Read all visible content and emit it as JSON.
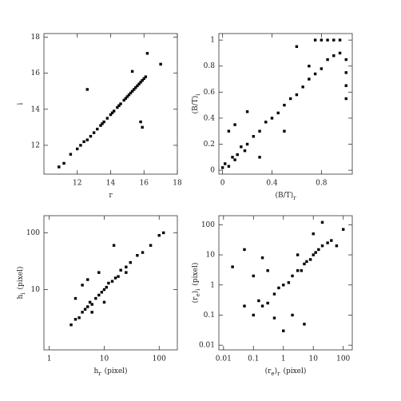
{
  "chart_data": [
    {
      "type": "scatter",
      "x_label": [
        "r"
      ],
      "y_label": [
        "i"
      ],
      "log_x": false,
      "log_y": false,
      "color": "#000000",
      "xlim": [
        10,
        18
      ],
      "ylim": [
        10.4,
        18.2
      ],
      "xticks": [
        12,
        14,
        16,
        18
      ],
      "yticks": [
        12,
        14,
        16,
        18
      ],
      "x": [
        10.9,
        11.2,
        11.6,
        12.0,
        12.2,
        12.4,
        12.6,
        12.8,
        13.0,
        13.2,
        13.4,
        13.5,
        13.6,
        13.8,
        14.0,
        14.1,
        14.2,
        14.4,
        14.5,
        14.6,
        14.8,
        14.9,
        15.0,
        15.1,
        15.2,
        15.3,
        15.4,
        15.5,
        15.6,
        15.7,
        15.8,
        15.9,
        16.0,
        16.1,
        12.6,
        15.8,
        15.9,
        16.2,
        17.0,
        15.3
      ],
      "values": [
        10.8,
        11.0,
        11.5,
        11.8,
        12.0,
        12.2,
        12.3,
        12.5,
        12.7,
        12.9,
        13.1,
        13.2,
        13.3,
        13.5,
        13.7,
        13.8,
        13.9,
        14.1,
        14.2,
        14.3,
        14.5,
        14.6,
        14.7,
        14.8,
        14.9,
        15.0,
        15.1,
        15.2,
        15.3,
        15.4,
        15.5,
        15.6,
        15.7,
        15.8,
        15.1,
        13.3,
        13.0,
        17.1,
        16.5,
        16.1
      ]
    },
    {
      "type": "scatter",
      "x_label": [
        "(B/T)",
        "r"
      ],
      "y_label": [
        "(B/T)",
        "i"
      ],
      "log_x": false,
      "log_y": false,
      "color": "#000000",
      "xlim": [
        -0.03,
        1.05
      ],
      "ylim": [
        -0.03,
        1.05
      ],
      "xticks": [
        0,
        0.4,
        0.8
      ],
      "yticks": [
        0,
        0.2,
        0.4,
        0.6,
        0.8,
        1
      ],
      "x": [
        0,
        0.02,
        0.05,
        0.08,
        0.1,
        0.12,
        0.15,
        0.18,
        0.2,
        0.25,
        0.3,
        0.35,
        0.4,
        0.45,
        0.5,
        0.55,
        0.6,
        0.65,
        0.7,
        0.75,
        0.8,
        0.85,
        0.9,
        0.95,
        0.05,
        0.1,
        0.3,
        0.2,
        0.5,
        0.6,
        0.75,
        0.8,
        0.85,
        0.9,
        0.95,
        1,
        1,
        1,
        1,
        0.7
      ],
      "values": [
        0.02,
        0.05,
        0.03,
        0.1,
        0.08,
        0.12,
        0.18,
        0.15,
        0.2,
        0.26,
        0.3,
        0.37,
        0.4,
        0.44,
        0.5,
        0.55,
        0.58,
        0.64,
        0.7,
        0.74,
        0.78,
        0.85,
        0.88,
        0.9,
        0.3,
        0.35,
        0.1,
        0.45,
        0.3,
        0.95,
        1,
        1,
        1,
        1,
        1,
        0.85,
        0.75,
        0.65,
        0.55,
        0.8
      ]
    },
    {
      "type": "scatter",
      "x_label": [
        "h",
        "r",
        "(pixel)"
      ],
      "y_label": [
        "h",
        "i",
        "(pixel)"
      ],
      "log_x": true,
      "log_y": true,
      "color": "#000000",
      "xlim": [
        0.8,
        214
      ],
      "ylim": [
        0.87,
        200
      ],
      "xticks": [
        1,
        10,
        100
      ],
      "yticks": [
        10,
        100
      ],
      "x": [
        2.5,
        3,
        3.5,
        4,
        4.5,
        5,
        5.5,
        6,
        7,
        8,
        9,
        10,
        11,
        12,
        14,
        16,
        18,
        20,
        25,
        30,
        40,
        50,
        70,
        100,
        3,
        4,
        6,
        8,
        10,
        5,
        15,
        25,
        120
      ],
      "values": [
        2.4,
        3,
        3.2,
        4,
        4.5,
        5,
        6,
        5.5,
        7,
        8,
        9,
        10,
        11,
        13,
        14,
        16,
        17,
        22,
        25,
        30,
        40,
        45,
        60,
        90,
        7,
        12,
        4,
        20,
        6,
        15,
        60,
        20,
        100
      ]
    },
    {
      "type": "scatter",
      "x_label": [
        "(r",
        "e",
        ")",
        "r",
        "(pixel)"
      ],
      "y_label": [
        "(r",
        "e",
        ")",
        "i",
        "(pixel)"
      ],
      "log_x": true,
      "log_y": true,
      "color": "#000000",
      "xlim": [
        0.007,
        200
      ],
      "ylim": [
        0.007,
        200
      ],
      "xticks": [
        0.01,
        0.1,
        1,
        10,
        100
      ],
      "yticks": [
        0.01,
        0.1,
        1,
        10,
        100
      ],
      "x": [
        0.02,
        0.05,
        0.1,
        0.15,
        0.2,
        0.3,
        0.5,
        0.7,
        1,
        1.5,
        2,
        3,
        4,
        5,
        6,
        8,
        10,
        12,
        15,
        20,
        30,
        40,
        0.3,
        0.1,
        0.5,
        2,
        5,
        1,
        3,
        10,
        20,
        0.05,
        0.2,
        60,
        100
      ],
      "values": [
        4,
        0.2,
        0.1,
        0.3,
        0.2,
        0.25,
        0.5,
        0.8,
        1,
        1.2,
        2,
        3,
        3,
        5,
        6,
        7,
        10,
        12,
        15,
        20,
        25,
        30,
        3,
        2,
        0.08,
        0.1,
        0.05,
        0.03,
        10,
        50,
        120,
        15,
        8,
        20,
        70
      ]
    }
  ]
}
